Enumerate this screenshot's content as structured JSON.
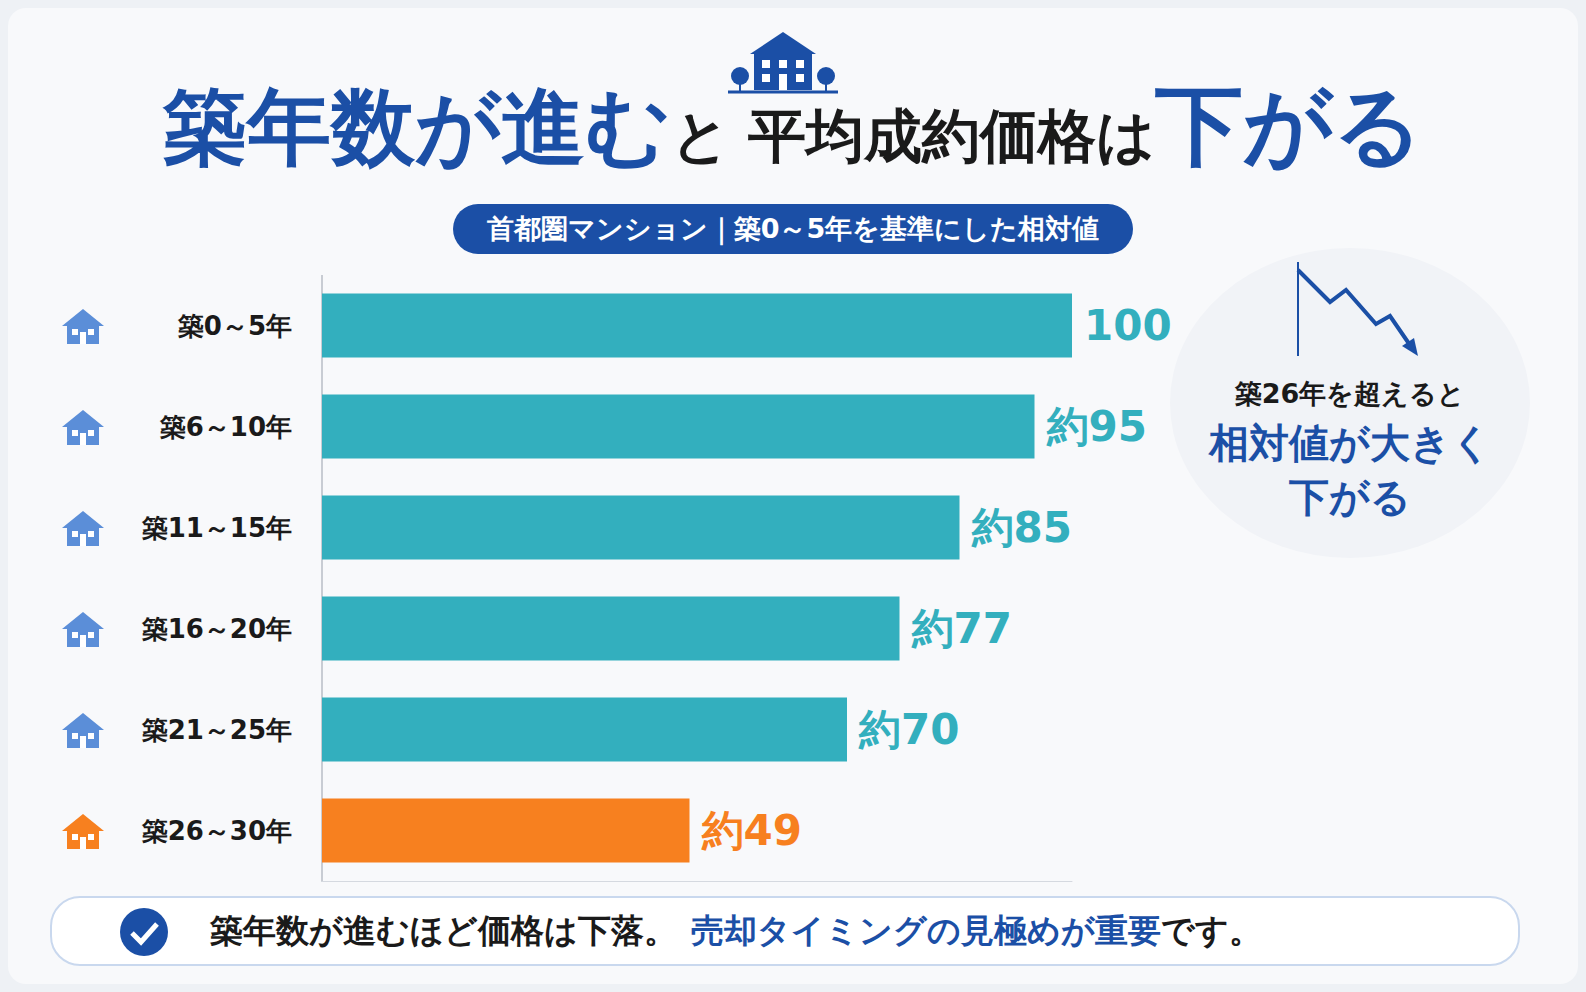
{
  "chart_data": {
    "type": "bar",
    "orientation": "horizontal",
    "title": [
      "築年数が進む",
      "と",
      "平均成約価格は",
      "下がる"
    ],
    "subtitle": "首都圏マンション｜築0～5年を基準にした相対値",
    "categories": [
      "築0～5年",
      "築6～10年",
      "築11～15年",
      "築16～20年",
      "築21～25年",
      "築26～30年"
    ],
    "values": [
      100,
      95,
      85,
      77,
      70,
      49
    ],
    "value_labels": [
      "100",
      "約95",
      "約85",
      "約77",
      "約70",
      "約49"
    ],
    "colors": [
      "#33afbe",
      "#33afbe",
      "#33afbe",
      "#33afbe",
      "#33afbe",
      "#f7801f"
    ],
    "xlim": [
      0,
      100
    ],
    "data_labels": true,
    "tick_labels": "y",
    "grid": false,
    "annotation": [
      "築26年を超えると",
      "相対値が大きく下がる"
    ],
    "footer": [
      "築年数が進むほど価格は下落。",
      "売却タイミングの見極めが重要",
      "です。"
    ]
  }
}
